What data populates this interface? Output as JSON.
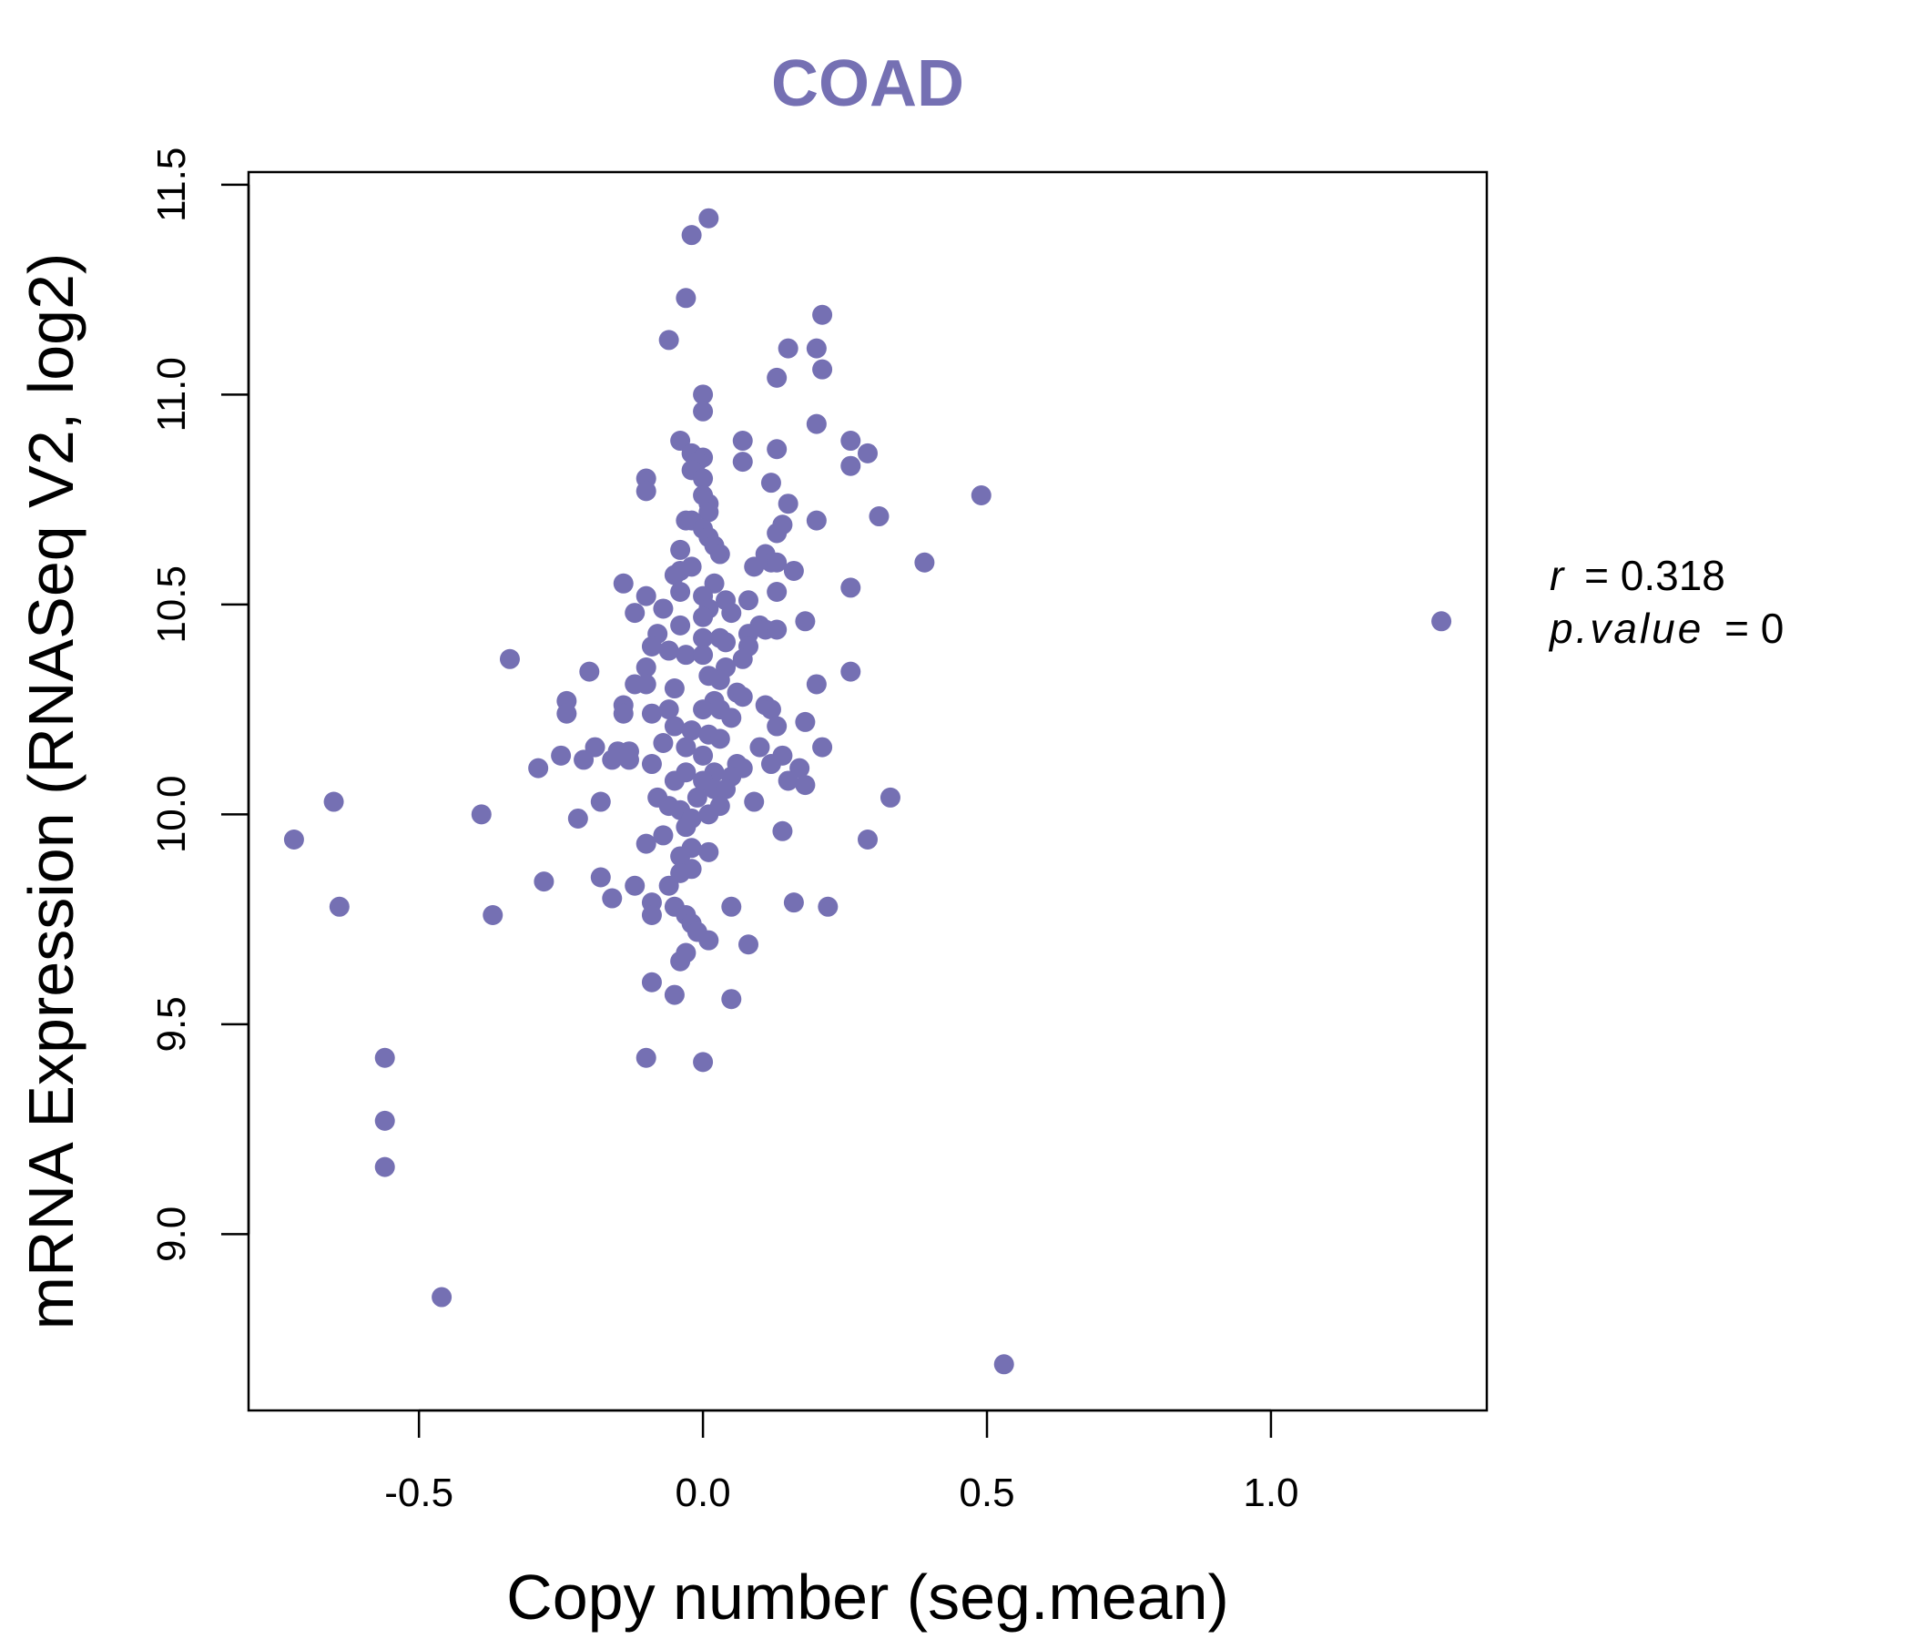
{
  "colors": {
    "accent": "#7570b3",
    "axis": "#000000",
    "background": "#ffffff"
  },
  "annotation": {
    "r_symbol": "r",
    "r_value": "= 0.318",
    "p_symbol": "p.value",
    "p_value": "= 0"
  },
  "chart_data": {
    "type": "scatter",
    "title": "COAD",
    "xlabel": "Copy number (seg.mean)",
    "ylabel": "mRNA Expression (RNASeq V2, log2)",
    "xlim": [
      -0.8,
      1.38
    ],
    "ylim": [
      8.58,
      11.53
    ],
    "xticks": [
      -0.5,
      0.0,
      0.5,
      1.0
    ],
    "xtick_labels": [
      "-0.5",
      "0.0",
      "0.5",
      "1.0"
    ],
    "yticks": [
      9.0,
      9.5,
      10.0,
      10.5,
      11.0,
      11.5
    ],
    "ytick_labels": [
      "9.0",
      "9.5",
      "10.0",
      "10.5",
      "11.0",
      "11.5"
    ],
    "grid": false,
    "legend": "none",
    "points": [
      [
        0.01,
        11.42
      ],
      [
        -0.02,
        11.38
      ],
      [
        -0.03,
        11.23
      ],
      [
        -0.06,
        11.13
      ],
      [
        0.21,
        11.19
      ],
      [
        0.15,
        11.11
      ],
      [
        0.2,
        11.11
      ],
      [
        0.21,
        11.06
      ],
      [
        0.13,
        11.04
      ],
      [
        0.0,
        11.0
      ],
      [
        0.0,
        10.96
      ],
      [
        0.2,
        10.93
      ],
      [
        0.07,
        10.89
      ],
      [
        -0.04,
        10.89
      ],
      [
        -0.02,
        10.86
      ],
      [
        0.0,
        10.85
      ],
      [
        -0.01,
        10.84
      ],
      [
        0.07,
        10.84
      ],
      [
        0.13,
        10.87
      ],
      [
        0.26,
        10.89
      ],
      [
        0.29,
        10.86
      ],
      [
        0.26,
        10.83
      ],
      [
        -0.02,
        10.82
      ],
      [
        0.0,
        10.8
      ],
      [
        0.12,
        10.79
      ],
      [
        -0.1,
        10.8
      ],
      [
        -0.1,
        10.77
      ],
      [
        0.49,
        10.76
      ],
      [
        0.0,
        10.76
      ],
      [
        0.01,
        10.74
      ],
      [
        0.01,
        10.72
      ],
      [
        0.15,
        10.74
      ],
      [
        0.31,
        10.71
      ],
      [
        -0.03,
        10.7
      ],
      [
        -0.02,
        10.7
      ],
      [
        0.0,
        10.68
      ],
      [
        0.01,
        10.66
      ],
      [
        0.14,
        10.69
      ],
      [
        0.13,
        10.67
      ],
      [
        0.2,
        10.7
      ],
      [
        0.02,
        10.64
      ],
      [
        -0.04,
        10.63
      ],
      [
        0.03,
        10.62
      ],
      [
        0.11,
        10.62
      ],
      [
        0.12,
        10.6
      ],
      [
        0.13,
        10.6
      ],
      [
        0.09,
        10.59
      ],
      [
        -0.02,
        10.59
      ],
      [
        -0.04,
        10.58
      ],
      [
        -0.05,
        10.57
      ],
      [
        0.16,
        10.58
      ],
      [
        0.39,
        10.6
      ],
      [
        0.26,
        10.54
      ],
      [
        -0.14,
        10.55
      ],
      [
        0.02,
        10.55
      ],
      [
        -0.04,
        10.53
      ],
      [
        0.0,
        10.52
      ],
      [
        0.04,
        10.51
      ],
      [
        0.08,
        10.51
      ],
      [
        -0.1,
        10.52
      ],
      [
        0.13,
        10.53
      ],
      [
        -0.12,
        10.48
      ],
      [
        -0.07,
        10.49
      ],
      [
        0.01,
        10.49
      ],
      [
        0.05,
        10.48
      ],
      [
        0.0,
        10.47
      ],
      [
        0.18,
        10.46
      ],
      [
        -0.04,
        10.45
      ],
      [
        0.1,
        10.45
      ],
      [
        0.11,
        10.44
      ],
      [
        0.13,
        10.44
      ],
      [
        0.08,
        10.43
      ],
      [
        -0.08,
        10.43
      ],
      [
        0.0,
        10.42
      ],
      [
        0.03,
        10.42
      ],
      [
        0.04,
        10.41
      ],
      [
        -0.09,
        10.4
      ],
      [
        0.08,
        10.4
      ],
      [
        -0.06,
        10.39
      ],
      [
        -0.03,
        10.38
      ],
      [
        0.0,
        10.38
      ],
      [
        0.07,
        10.37
      ],
      [
        -0.34,
        10.37
      ],
      [
        -0.1,
        10.35
      ],
      [
        0.04,
        10.35
      ],
      [
        -0.2,
        10.34
      ],
      [
        0.26,
        10.34
      ],
      [
        0.01,
        10.33
      ],
      [
        0.03,
        10.32
      ],
      [
        -0.12,
        10.31
      ],
      [
        -0.1,
        10.31
      ],
      [
        0.2,
        10.31
      ],
      [
        -0.05,
        10.3
      ],
      [
        0.06,
        10.29
      ],
      [
        0.07,
        10.28
      ],
      [
        0.02,
        10.27
      ],
      [
        -0.24,
        10.27
      ],
      [
        -0.14,
        10.26
      ],
      [
        0.11,
        10.26
      ],
      [
        0.12,
        10.25
      ],
      [
        -0.06,
        10.25
      ],
      [
        0.0,
        10.25
      ],
      [
        0.03,
        10.25
      ],
      [
        -0.14,
        10.24
      ],
      [
        -0.24,
        10.24
      ],
      [
        -0.09,
        10.24
      ],
      [
        0.05,
        10.23
      ],
      [
        0.18,
        10.22
      ],
      [
        0.13,
        10.21
      ],
      [
        -0.05,
        10.21
      ],
      [
        -0.02,
        10.2
      ],
      [
        0.01,
        10.19
      ],
      [
        0.03,
        10.18
      ],
      [
        -0.07,
        10.17
      ],
      [
        -0.03,
        10.16
      ],
      [
        0.1,
        10.16
      ],
      [
        0.21,
        10.16
      ],
      [
        -0.19,
        10.16
      ],
      [
        -0.15,
        10.15
      ],
      [
        -0.13,
        10.15
      ],
      [
        -0.25,
        10.14
      ],
      [
        0.0,
        10.14
      ],
      [
        0.14,
        10.14
      ],
      [
        -0.16,
        10.13
      ],
      [
        -0.21,
        10.13
      ],
      [
        -0.13,
        10.13
      ],
      [
        -0.09,
        10.12
      ],
      [
        0.06,
        10.12
      ],
      [
        0.07,
        10.11
      ],
      [
        0.12,
        10.12
      ],
      [
        0.17,
        10.11
      ],
      [
        -0.29,
        10.11
      ],
      [
        -0.03,
        10.1
      ],
      [
        0.02,
        10.1
      ],
      [
        0.05,
        10.09
      ],
      [
        -0.05,
        10.08
      ],
      [
        0.0,
        10.08
      ],
      [
        0.15,
        10.08
      ],
      [
        0.18,
        10.07
      ],
      [
        0.02,
        10.06
      ],
      [
        0.04,
        10.06
      ],
      [
        -0.08,
        10.04
      ],
      [
        0.33,
        10.04
      ],
      [
        -0.01,
        10.04
      ],
      [
        0.09,
        10.03
      ],
      [
        -0.65,
        10.03
      ],
      [
        -0.18,
        10.03
      ],
      [
        0.03,
        10.02
      ],
      [
        -0.06,
        10.02
      ],
      [
        -0.04,
        10.01
      ],
      [
        0.01,
        10.0
      ],
      [
        -0.39,
        10.0
      ],
      [
        -0.22,
        9.99
      ],
      [
        -0.02,
        9.99
      ],
      [
        -0.03,
        9.97
      ],
      [
        0.14,
        9.96
      ],
      [
        -0.07,
        9.95
      ],
      [
        -0.72,
        9.94
      ],
      [
        0.29,
        9.94
      ],
      [
        -0.1,
        9.93
      ],
      [
        -0.02,
        9.92
      ],
      [
        0.01,
        9.91
      ],
      [
        -0.04,
        9.9
      ],
      [
        -0.02,
        9.87
      ],
      [
        -0.04,
        9.86
      ],
      [
        -0.18,
        9.85
      ],
      [
        -0.06,
        9.83
      ],
      [
        -0.28,
        9.84
      ],
      [
        -0.12,
        9.83
      ],
      [
        -0.16,
        9.8
      ],
      [
        -0.09,
        9.79
      ],
      [
        0.16,
        9.79
      ],
      [
        0.22,
        9.78
      ],
      [
        -0.05,
        9.78
      ],
      [
        -0.64,
        9.78
      ],
      [
        0.05,
        9.78
      ],
      [
        -0.09,
        9.76
      ],
      [
        -0.03,
        9.76
      ],
      [
        -0.37,
        9.76
      ],
      [
        -0.02,
        9.74
      ],
      [
        -0.01,
        9.72
      ],
      [
        0.01,
        9.7
      ],
      [
        0.08,
        9.69
      ],
      [
        -0.03,
        9.67
      ],
      [
        -0.04,
        9.65
      ],
      [
        -0.09,
        9.6
      ],
      [
        -0.05,
        9.57
      ],
      [
        0.05,
        9.56
      ],
      [
        -0.56,
        9.42
      ],
      [
        -0.1,
        9.42
      ],
      [
        0.0,
        9.41
      ],
      [
        -0.56,
        9.27
      ],
      [
        -0.56,
        9.16
      ],
      [
        -0.46,
        8.85
      ],
      [
        0.53,
        8.69
      ],
      [
        1.3,
        10.46
      ]
    ]
  }
}
